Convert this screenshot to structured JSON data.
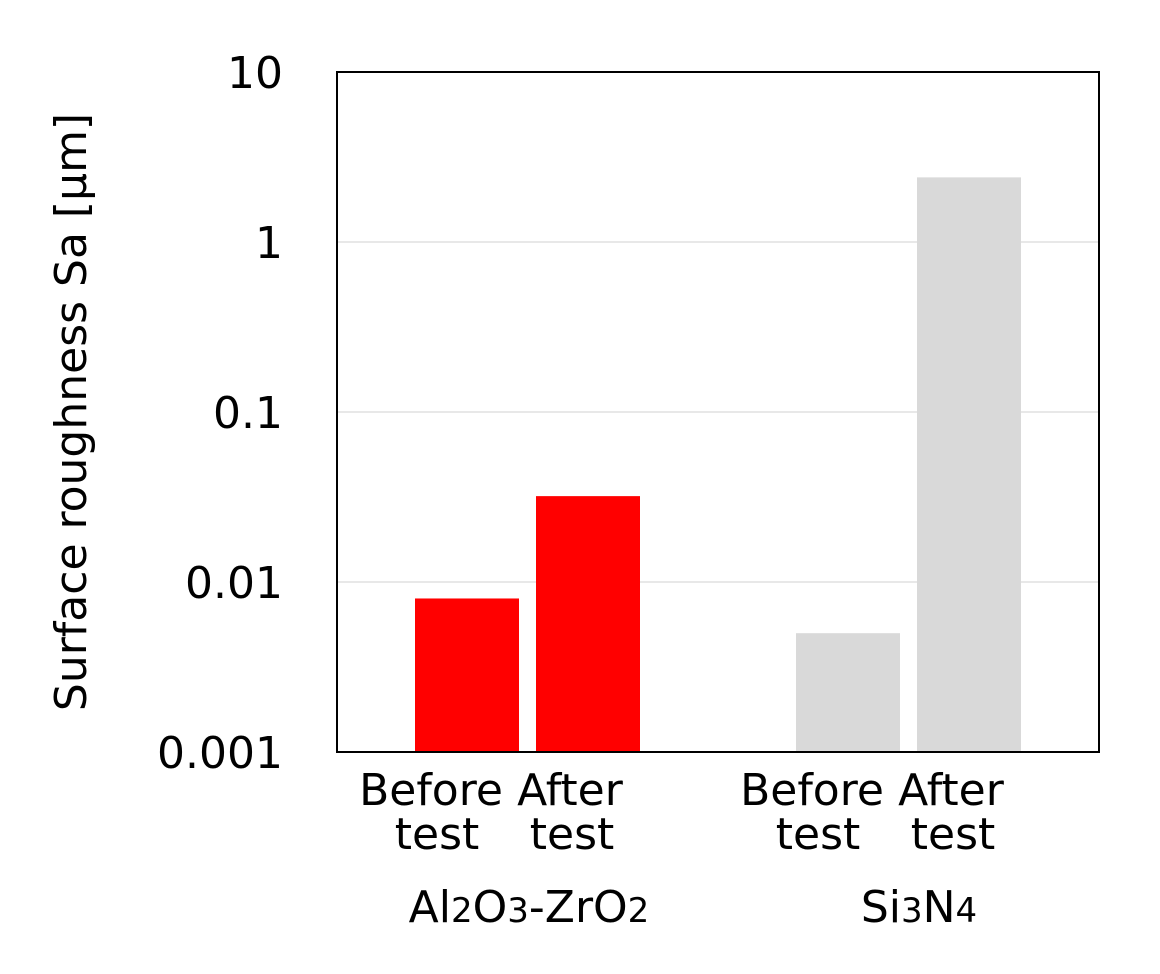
{
  "chart_data": {
    "type": "bar",
    "title": "",
    "ylabel": "Surface roughness Sa [µm]",
    "yscale": "log",
    "ylim": [
      0.001,
      10
    ],
    "yticks": [
      "0.001",
      "0.01",
      "0.1",
      "1",
      "10"
    ],
    "grid": true,
    "groups": [
      {
        "name": {
          "p1": "Al",
          "s1": "2",
          "p2": "O",
          "s2": "3",
          "p3": "-ZrO",
          "s3": "2"
        },
        "color": "#ff0000",
        "bars": [
          {
            "label_line1": "Before",
            "label_line2": "test",
            "value": 0.008
          },
          {
            "label_line1": "After",
            "label_line2": "test",
            "value": 0.032
          }
        ]
      },
      {
        "name": {
          "p1": "Si",
          "s1": "3",
          "p2": "N",
          "s2": "4",
          "p3": "",
          "s3": ""
        },
        "color": "#d9d9d9",
        "bars": [
          {
            "label_line1": "Before",
            "label_line2": "test",
            "value": 0.005
          },
          {
            "label_line1": "After",
            "label_line2": "test",
            "value": 2.4
          }
        ]
      }
    ]
  }
}
